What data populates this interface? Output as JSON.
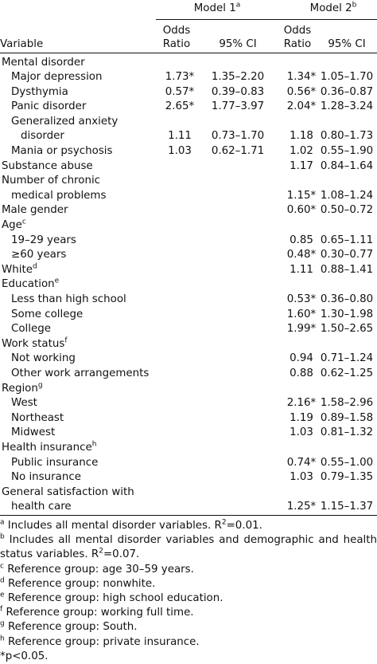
{
  "header": {
    "model1": {
      "title": "Model 1",
      "sup": "a"
    },
    "model2": {
      "title": "Model 2",
      "sup": "b"
    },
    "variable": "Variable",
    "odds_ratio": [
      "Odds",
      "Ratio"
    ],
    "ci": "95% CI"
  },
  "table": {
    "rows": [
      {
        "label": [
          "Mental disorder"
        ],
        "indent": 0
      },
      {
        "label": [
          "Major depression"
        ],
        "indent": 1,
        "or1": "1.73*",
        "ci1": "1.35–2.20",
        "or2": "1.34*",
        "ci2": "1.05–1.70"
      },
      {
        "label": [
          "Dysthymia"
        ],
        "indent": 1,
        "or1": "0.57*",
        "ci1": "0.39–0.83",
        "or2": "0.56*",
        "ci2": "0.36–0.87"
      },
      {
        "label": [
          "Panic disorder"
        ],
        "indent": 1,
        "or1": "2.65*",
        "ci1": "1.77–3.97",
        "or2": "2.04*",
        "ci2": "1.28–3.24"
      },
      {
        "label": [
          "Generalized anxiety",
          "disorder"
        ],
        "indent": 1,
        "or1": "1.11",
        "ci1": "0.73–1.70",
        "or2": "1.18",
        "ci2": "0.80–1.73"
      },
      {
        "label": [
          "Mania or psychosis"
        ],
        "indent": 1,
        "or1": "1.03",
        "ci1": "0.62–1.71",
        "or2": "1.02",
        "ci2": "0.55–1.90"
      },
      {
        "label": [
          "Substance abuse"
        ],
        "indent": 0,
        "or2": "1.17",
        "ci2": "0.84–1.64"
      },
      {
        "label": [
          "Number of chronic",
          "medical problems"
        ],
        "indent": 0,
        "or2": "1.15*",
        "ci2": "1.08–1.24"
      },
      {
        "label": [
          "Male gender"
        ],
        "indent": 0,
        "or2": "0.60*",
        "ci2": "0.50–0.72"
      },
      {
        "label": [
          "Age"
        ],
        "sup": "c",
        "indent": 0
      },
      {
        "label": [
          "19–29 years"
        ],
        "indent": 1,
        "or2": "0.85",
        "ci2": "0.65–1.11"
      },
      {
        "label": [
          "≥60 years"
        ],
        "indent": 1,
        "or2": "0.48*",
        "ci2": "0.30–0.77"
      },
      {
        "label": [
          "White"
        ],
        "sup": "d",
        "indent": 0,
        "or2": "1.11",
        "ci2": "0.88–1.41"
      },
      {
        "label": [
          "Education"
        ],
        "sup": "e",
        "indent": 0
      },
      {
        "label": [
          "Less than high school"
        ],
        "indent": 1,
        "or2": "0.53*",
        "ci2": "0.36–0.80"
      },
      {
        "label": [
          "Some college"
        ],
        "indent": 1,
        "or2": "1.60*",
        "ci2": "1.30–1.98"
      },
      {
        "label": [
          "College"
        ],
        "indent": 1,
        "or2": "1.99*",
        "ci2": "1.50–2.65"
      },
      {
        "label": [
          "Work status"
        ],
        "sup": "f",
        "indent": 0
      },
      {
        "label": [
          "Not working"
        ],
        "indent": 1,
        "or2": "0.94",
        "ci2": "0.71–1.24"
      },
      {
        "label": [
          "Other work arrangements"
        ],
        "indent": 1,
        "or2": "0.88",
        "ci2": "0.62–1.25"
      },
      {
        "label": [
          "Region"
        ],
        "sup": "g",
        "indent": 0
      },
      {
        "label": [
          "West"
        ],
        "indent": 1,
        "or2": "2.16*",
        "ci2": "1.58–2.96"
      },
      {
        "label": [
          "Northeast"
        ],
        "indent": 1,
        "or2": "1.19",
        "ci2": "0.89–1.58"
      },
      {
        "label": [
          "Midwest"
        ],
        "indent": 1,
        "or2": "1.03",
        "ci2": "0.81–1.32"
      },
      {
        "label": [
          "Health insurance"
        ],
        "sup": "h",
        "indent": 0
      },
      {
        "label": [
          "Public insurance"
        ],
        "indent": 1,
        "or2": "0.74*",
        "ci2": "0.55–1.00"
      },
      {
        "label": [
          "No insurance"
        ],
        "indent": 1,
        "or2": "1.03",
        "ci2": "0.79–1.35"
      },
      {
        "label": [
          "General satisfaction with",
          "health care"
        ],
        "indent": 0,
        "or2": "1.25*",
        "ci2": "1.15–1.37"
      }
    ]
  },
  "footnotes": [
    {
      "mark": "a",
      "parts": [
        "Includes all mental disorder variables. R",
        "2",
        "=0.01."
      ]
    },
    {
      "mark": "b",
      "parts": [
        "Includes all mental disorder variables and demographic and health status variables. R",
        "2",
        "=0.07."
      ]
    },
    {
      "mark": "c",
      "parts": [
        "Reference group: age 30–59 years."
      ]
    },
    {
      "mark": "d",
      "parts": [
        "Reference group: nonwhite."
      ]
    },
    {
      "mark": "e",
      "parts": [
        "Reference group: high school education."
      ]
    },
    {
      "mark": "f",
      "parts": [
        "Reference group: working full time."
      ]
    },
    {
      "mark": "g",
      "parts": [
        "Reference group: South."
      ]
    },
    {
      "mark": "h",
      "parts": [
        "Reference group: private insurance."
      ]
    },
    {
      "parts": [
        "*p<0.05."
      ]
    }
  ]
}
